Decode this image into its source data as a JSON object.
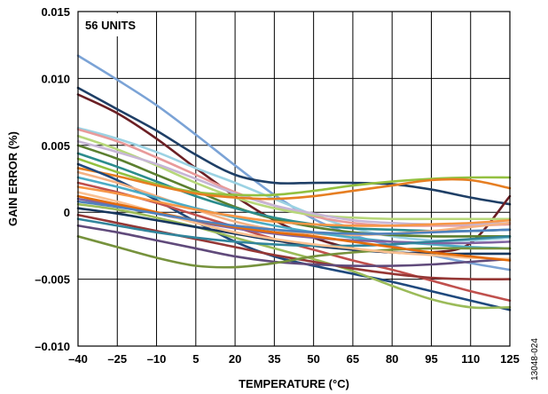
{
  "chart_data": {
    "type": "line",
    "title": "",
    "xlabel": "TEMPERATURE (°C)",
    "ylabel": "GAIN ERROR (%)",
    "annotation": "56 UNITS",
    "figure_id": "13048-024",
    "xlim": [
      -40,
      125
    ],
    "ylim": [
      -0.01,
      0.015
    ],
    "x_ticks": [
      -40,
      -25,
      -10,
      5,
      20,
      35,
      50,
      65,
      80,
      95,
      110,
      125
    ],
    "x_tick_labels": [
      "–40",
      "–25",
      "–10",
      "5",
      "20",
      "35",
      "50",
      "65",
      "80",
      "95",
      "110",
      "125"
    ],
    "y_ticks": [
      -0.01,
      -0.005,
      0,
      0.005,
      0.01,
      0.015
    ],
    "y_tick_labels": [
      "–0.010",
      "–0.005",
      "0",
      "0.005",
      "0.010",
      "0.015"
    ],
    "grid": true,
    "legend": "none",
    "x": [
      -40,
      -25,
      -10,
      5,
      20,
      35,
      50,
      65,
      80,
      95,
      110,
      125
    ],
    "series": [
      {
        "color": "#7BA3D6",
        "values": [
          0.0117,
          0.0099,
          0.008,
          0.0058,
          0.0035,
          0.0013,
          -0.0005,
          -0.0017,
          -0.0025,
          -0.0032,
          -0.0038,
          -0.0043
        ]
      },
      {
        "color": "#1F3F66",
        "values": [
          0.0093,
          0.0077,
          0.0061,
          0.0043,
          0.0028,
          0.0022,
          0.0022,
          0.0022,
          0.0021,
          0.0017,
          0.0011,
          0.0006
        ]
      },
      {
        "color": "#6B1F24",
        "values": [
          0.0088,
          0.0074,
          0.0055,
          0.0033,
          0.0012,
          -0.0006,
          -0.0019,
          -0.0027,
          -0.003,
          -0.003,
          -0.0023,
          0.0012
        ]
      },
      {
        "color": "#9BD2E3",
        "values": [
          0.0063,
          0.0055,
          0.0045,
          0.0033,
          0.0022,
          0.001,
          -0.0002,
          -0.0012,
          -0.0018,
          -0.0021,
          -0.0021,
          -0.0019
        ]
      },
      {
        "color": "#E89A9A",
        "values": [
          0.0062,
          0.0053,
          0.0041,
          0.0028,
          0.0015,
          0.0005,
          -0.0003,
          -0.0008,
          -0.001,
          -0.001,
          -0.001,
          -0.0009
        ]
      },
      {
        "color": "#B7D77A",
        "values": [
          0.0057,
          0.0047,
          0.0035,
          0.0022,
          0.0011,
          0.0003,
          -0.0002,
          -0.0004,
          -0.0005,
          -0.0005,
          -0.0005,
          -0.0005
        ]
      },
      {
        "color": "#C7B6D6",
        "values": [
          0.0053,
          0.0045,
          0.0036,
          0.0025,
          0.0014,
          0.0005,
          -0.0001,
          -0.0006,
          -0.0008,
          -0.0009,
          -0.0009,
          -0.0008
        ]
      },
      {
        "color": "#5B7F2F",
        "values": [
          0.005,
          0.004,
          0.0028,
          0.0016,
          0.0004,
          -0.0005,
          -0.0011,
          -0.0015,
          -0.0017,
          -0.0018,
          -0.0018,
          -0.0018
        ]
      },
      {
        "color": "#2B8C8C",
        "values": [
          0.0044,
          0.0034,
          0.0023,
          0.0012,
          0.0003,
          -0.0004,
          -0.0009,
          -0.0012,
          -0.0013,
          -0.0014,
          -0.0014,
          -0.0013
        ]
      },
      {
        "color": "#93C03F",
        "values": [
          0.004,
          0.003,
          0.0021,
          0.0015,
          0.0013,
          0.0013,
          0.0016,
          0.002,
          0.0023,
          0.0025,
          0.0026,
          0.0026
        ]
      },
      {
        "color": "#E67E22",
        "values": [
          0.0033,
          0.0027,
          0.002,
          0.0014,
          0.0011,
          0.001,
          0.0012,
          0.0016,
          0.002,
          0.0024,
          0.0024,
          0.0018
        ]
      },
      {
        "color": "#1F497D",
        "values": [
          0.0036,
          0.0024,
          0.0009,
          -0.0007,
          -0.0022,
          -0.0033,
          -0.004,
          -0.0046,
          -0.0052,
          -0.0059,
          -0.0066,
          -0.0073
        ]
      },
      {
        "color": "#F4B183",
        "values": [
          0.003,
          0.0022,
          0.0012,
          0.0002,
          -0.0007,
          -0.0013,
          -0.0016,
          -0.0017,
          -0.0016,
          -0.0014,
          -0.0011,
          -0.0008
        ]
      },
      {
        "color": "#4BACC6",
        "values": [
          0.0026,
          0.0019,
          0.0011,
          0.0003,
          -0.0004,
          -0.001,
          -0.0015,
          -0.0019,
          -0.0022,
          -0.0024,
          -0.0026,
          -0.0027
        ]
      },
      {
        "color": "#C0504D",
        "values": [
          0.0022,
          0.0015,
          0.0007,
          -0.0002,
          -0.0011,
          -0.002,
          -0.0028,
          -0.0036,
          -0.0043,
          -0.0051,
          -0.0059,
          -0.0066
        ]
      },
      {
        "color": "#F79646",
        "values": [
          0.0019,
          0.0014,
          0.0008,
          0.0002,
          -0.0003,
          -0.0007,
          -0.0009,
          -0.001,
          -0.001,
          -0.0009,
          -0.0008,
          -0.0006
        ]
      },
      {
        "color": "#8064A2",
        "values": [
          0.001,
          0.0005,
          -0.0001,
          -0.0007,
          -0.0012,
          -0.0016,
          -0.0019,
          -0.0021,
          -0.0022,
          -0.0023,
          -0.0023,
          -0.0022
        ]
      },
      {
        "color": "#9BBB59",
        "values": [
          0.0006,
          0.0002,
          -0.0004,
          -0.0011,
          -0.0019,
          -0.0027,
          -0.0035,
          -0.0044,
          -0.0055,
          -0.0065,
          -0.0071,
          -0.0071
        ]
      },
      {
        "color": "#17375E",
        "values": [
          0.0003,
          -0.0001,
          -0.0006,
          -0.0011,
          -0.0016,
          -0.0021,
          -0.0025,
          -0.0028,
          -0.003,
          -0.0031,
          -0.0031,
          -0.0031
        ]
      },
      {
        "color": "#953735",
        "values": [
          -0.0002,
          -0.0008,
          -0.0014,
          -0.002,
          -0.0026,
          -0.0032,
          -0.0037,
          -0.0042,
          -0.0046,
          -0.0049,
          -0.005,
          -0.005
        ]
      },
      {
        "color": "#31859C",
        "values": [
          -0.0005,
          -0.001,
          -0.0015,
          -0.0019,
          -0.0022,
          -0.0024,
          -0.0025,
          -0.0025,
          -0.0024,
          -0.0022,
          -0.002,
          -0.0018
        ]
      },
      {
        "color": "#604A7B",
        "values": [
          -0.001,
          -0.0015,
          -0.0021,
          -0.0027,
          -0.0033,
          -0.0037,
          -0.0039,
          -0.004,
          -0.004,
          -0.0039,
          -0.0037,
          -0.0035
        ]
      },
      {
        "color": "#76923C",
        "values": [
          -0.0018,
          -0.0026,
          -0.0034,
          -0.004,
          -0.0041,
          -0.0038,
          -0.0033,
          -0.003,
          -0.0028,
          -0.0027,
          -0.0027,
          -0.0027
        ]
      },
      {
        "color": "#FAC090",
        "values": [
          0.0015,
          0.0008,
          0.0,
          -0.0008,
          -0.0015,
          -0.002,
          -0.0024,
          -0.0027,
          -0.003,
          -0.0032,
          -0.0034,
          -0.0035
        ]
      },
      {
        "color": "#E46C0A",
        "values": [
          0.0012,
          0.0006,
          0.0,
          -0.0006,
          -0.0011,
          -0.0015,
          -0.0018,
          -0.0022,
          -0.0026,
          -0.003,
          -0.0033,
          -0.0036
        ]
      },
      {
        "color": "#4F81BD",
        "values": [
          0.0008,
          0.0004,
          -0.0001,
          -0.0006,
          -0.001,
          -0.0013,
          -0.0015,
          -0.0016,
          -0.0016,
          -0.0015,
          -0.0014,
          -0.0013
        ]
      }
    ]
  }
}
